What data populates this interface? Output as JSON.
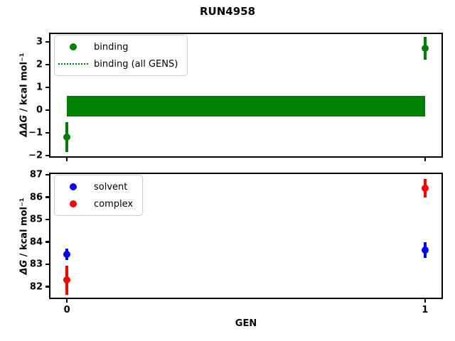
{
  "title": "RUN4958",
  "background_color": "#ffffff",
  "axes_color": "#000000",
  "legend_border_color": "#cccccc",
  "chart_data": [
    {
      "type": "scatter",
      "position": "top",
      "ylabel": "ΔΔG / kcal mol⁻¹",
      "ylabel_parts": {
        "math": "ΔΔG",
        "rest": " / kcal mol⁻¹"
      },
      "xlabel": "",
      "xlim": [
        -0.05,
        1.05
      ],
      "ylim": [
        -2.1,
        3.4
      ],
      "grid": false,
      "xticks": [
        {
          "v": 0,
          "label": "0"
        },
        {
          "v": 1,
          "label": "1"
        }
      ],
      "xtick_labels_visible": false,
      "yticks": [
        {
          "v": 3,
          "label": "3"
        },
        {
          "v": 2,
          "label": "2"
        },
        {
          "v": 1,
          "label": "1"
        },
        {
          "v": 0,
          "label": "0"
        },
        {
          "v": -1,
          "label": "−1"
        },
        {
          "v": -2,
          "label": "−2"
        }
      ],
      "legend_position": "upper left",
      "legend": [
        {
          "label": "binding",
          "handle": "dot",
          "color": "#008000"
        },
        {
          "label": "binding (all GENS)",
          "handle": "dotted-line",
          "color": "#008000"
        }
      ],
      "series": [
        {
          "name": "binding",
          "color": "#008000",
          "marker": "o",
          "x": [
            0,
            1
          ],
          "y": [
            -1.2,
            2.7
          ],
          "yerr": [
            0.65,
            0.5
          ]
        }
      ],
      "band": {
        "name": "binding (all GENS)",
        "color": "#008000",
        "x": [
          0,
          1
        ],
        "y_low": -0.3,
        "y_high": 0.62
      }
    },
    {
      "type": "scatter",
      "position": "bottom",
      "ylabel": "ΔG / kcal mol⁻¹",
      "ylabel_parts": {
        "math": "ΔG",
        "rest": " / kcal mol⁻¹"
      },
      "xlabel": "GEN",
      "xlim": [
        -0.05,
        1.05
      ],
      "ylim": [
        81.45,
        87.1
      ],
      "grid": false,
      "xticks": [
        {
          "v": 0,
          "label": "0"
        },
        {
          "v": 1,
          "label": "1"
        }
      ],
      "xtick_labels_visible": true,
      "yticks": [
        {
          "v": 87,
          "label": "87"
        },
        {
          "v": 86,
          "label": "86"
        },
        {
          "v": 85,
          "label": "85"
        },
        {
          "v": 84,
          "label": "84"
        },
        {
          "v": 83,
          "label": "83"
        },
        {
          "v": 82,
          "label": "82"
        }
      ],
      "legend_position": "upper left",
      "legend": [
        {
          "label": "solvent",
          "handle": "dot",
          "color": "#0000ff"
        },
        {
          "label": "complex",
          "handle": "dot",
          "color": "#ff0000"
        }
      ],
      "series": [
        {
          "name": "solvent",
          "color": "#0000ff",
          "marker": "o",
          "x": [
            0,
            1
          ],
          "y": [
            83.45,
            83.65
          ],
          "yerr": [
            0.25,
            0.35
          ]
        },
        {
          "name": "complex",
          "color": "#ff0000",
          "marker": "o",
          "x": [
            0,
            1
          ],
          "y": [
            82.3,
            86.4
          ],
          "yerr": [
            0.65,
            0.42
          ]
        }
      ]
    }
  ]
}
